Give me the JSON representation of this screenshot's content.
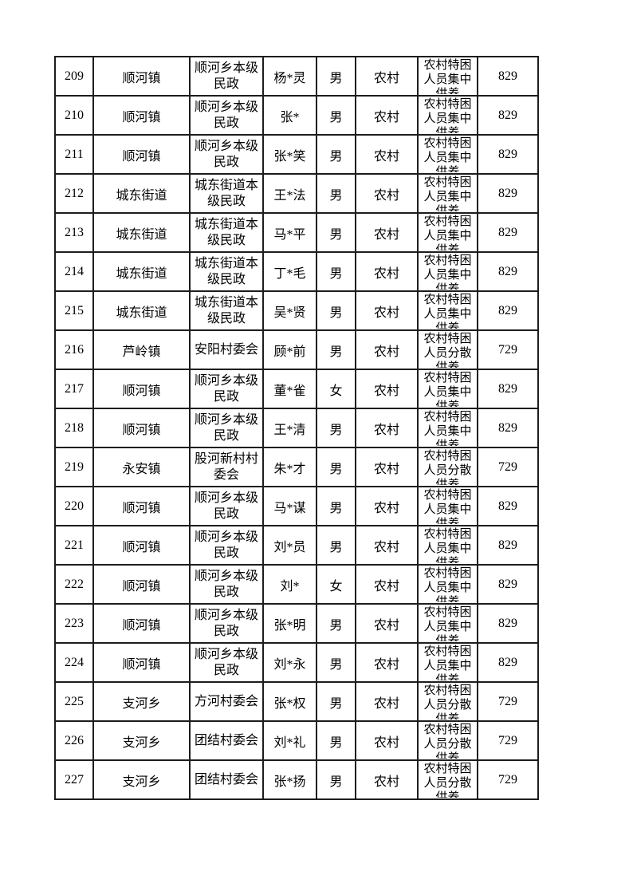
{
  "page": {
    "background": "#ffffff",
    "text_color": "#000000",
    "border_color": "#1d1d1d"
  },
  "table": {
    "columns": [
      "seq",
      "town",
      "org",
      "name",
      "gender",
      "category",
      "support",
      "amount"
    ],
    "rows": [
      [
        "209",
        "顺河镇",
        "顺河乡本级民政",
        "杨*灵",
        "男",
        "农村",
        "农村特困人员集中供养",
        "829"
      ],
      [
        "210",
        "顺河镇",
        "顺河乡本级民政",
        "张*",
        "男",
        "农村",
        "农村特困人员集中供养",
        "829"
      ],
      [
        "211",
        "顺河镇",
        "顺河乡本级民政",
        "张*笑",
        "男",
        "农村",
        "农村特困人员集中供养",
        "829"
      ],
      [
        "212",
        "城东街道",
        "城东街道本级民政",
        "王*法",
        "男",
        "农村",
        "农村特困人员集中供养",
        "829"
      ],
      [
        "213",
        "城东街道",
        "城东街道本级民政",
        "马*平",
        "男",
        "农村",
        "农村特困人员集中供养",
        "829"
      ],
      [
        "214",
        "城东街道",
        "城东街道本级民政",
        "丁*毛",
        "男",
        "农村",
        "农村特困人员集中供养",
        "829"
      ],
      [
        "215",
        "城东街道",
        "城东街道本级民政",
        "吴*贤",
        "男",
        "农村",
        "农村特困人员集中供养",
        "829"
      ],
      [
        "216",
        "芦岭镇",
        "安阳村委会",
        "顾*前",
        "男",
        "农村",
        "农村特困人员分散供养",
        "729"
      ],
      [
        "217",
        "顺河镇",
        "顺河乡本级民政",
        "董*雀",
        "女",
        "农村",
        "农村特困人员集中供养",
        "829"
      ],
      [
        "218",
        "顺河镇",
        "顺河乡本级民政",
        "王*清",
        "男",
        "农村",
        "农村特困人员集中供养",
        "829"
      ],
      [
        "219",
        "永安镇",
        "股河新村村委会",
        "朱*才",
        "男",
        "农村",
        "农村特困人员分散供养",
        "729"
      ],
      [
        "220",
        "顺河镇",
        "顺河乡本级民政",
        "马*谋",
        "男",
        "农村",
        "农村特困人员集中供养",
        "829"
      ],
      [
        "221",
        "顺河镇",
        "顺河乡本级民政",
        "刘*员",
        "男",
        "农村",
        "农村特困人员集中供养",
        "829"
      ],
      [
        "222",
        "顺河镇",
        "顺河乡本级民政",
        "刘*",
        "女",
        "农村",
        "农村特困人员集中供养",
        "829"
      ],
      [
        "223",
        "顺河镇",
        "顺河乡本级民政",
        "张*明",
        "男",
        "农村",
        "农村特困人员集中供养",
        "829"
      ],
      [
        "224",
        "顺河镇",
        "顺河乡本级民政",
        "刘*永",
        "男",
        "农村",
        "农村特困人员集中供养",
        "829"
      ],
      [
        "225",
        "支河乡",
        "方河村委会",
        "张*权",
        "男",
        "农村",
        "农村特困人员分散供养",
        "729"
      ],
      [
        "226",
        "支河乡",
        "团结村委会",
        "刘*礼",
        "男",
        "农村",
        "农村特困人员分散供养",
        "729"
      ],
      [
        "227",
        "支河乡",
        "团结村委会",
        "张*扬",
        "男",
        "农村",
        "农村特困人员分散供养",
        "729"
      ]
    ]
  }
}
